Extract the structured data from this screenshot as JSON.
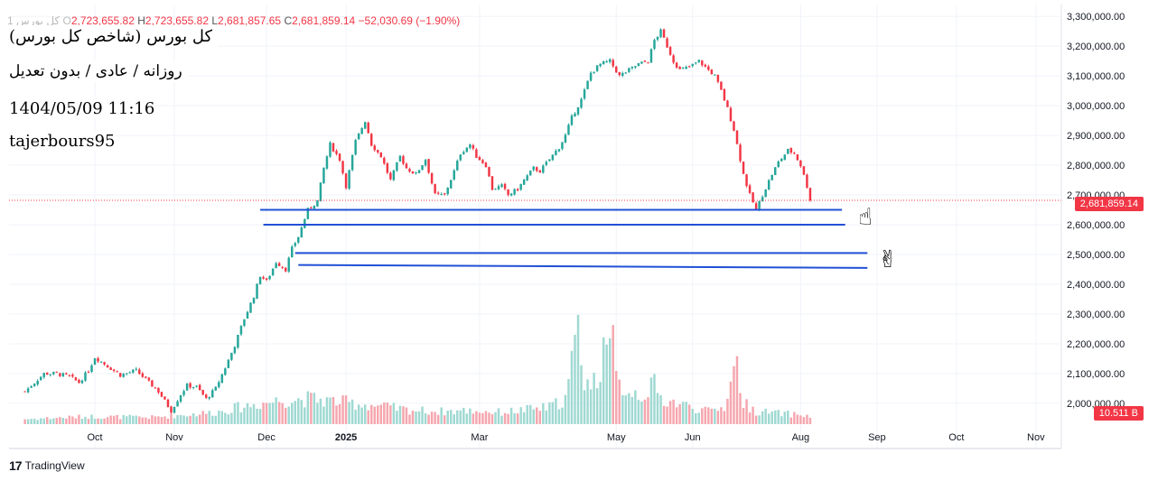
{
  "header": {
    "symbol": "کل بورس 1",
    "o_label": "O",
    "o_value": "2,723,655.82",
    "h_label": "H",
    "h_value": "2,723,655.82",
    "l_label": "L",
    "l_value": "2,681,857.65",
    "c_label": "C",
    "c_value": "2,681,859.14",
    "change": "−52,030.69 (−1.90%)"
  },
  "overlay": {
    "line1": "کل بورس (شاخص کل بورس)",
    "line2": "روزانه / عادی / بدون تعدیل",
    "line3": "1404/05/09 11:16",
    "line4": "tajerbours95"
  },
  "price_tag": "2,681,859.14",
  "volume_tag": "10.511 B",
  "brand": {
    "logo": "17",
    "name": "TradingView"
  },
  "emojis": {
    "pointer": "☝",
    "victory": "✌"
  },
  "colors": {
    "up": "#26a69a",
    "down": "#f23645",
    "up_vol": "#9fd9d2",
    "down_vol": "#f5a6ae",
    "hline": "#2150d6",
    "grid": "#f0f3fa"
  },
  "chart_data": {
    "type": "candlestick",
    "y_ticks": [
      "3,300,000.00",
      "3,200,000.00",
      "3,100,000.00",
      "3,000,000.00",
      "2,900,000.00",
      "2,800,000.00",
      "2,700,000.00",
      "2,600,000.00",
      "2,500,000.00",
      "2,400,000.00",
      "2,300,000.00",
      "2,200,000.00",
      "2,100,000.00",
      "2,000,000.00"
    ],
    "y_tick_values": [
      3300000,
      3200000,
      3100000,
      3000000,
      2900000,
      2800000,
      2700000,
      2600000,
      2500000,
      2400000,
      2300000,
      2200000,
      2100000,
      2000000
    ],
    "ylim": [
      1930000,
      3340000
    ],
    "x_ticks": [
      "Oct",
      "Nov",
      "Dec",
      "2025",
      "Mar",
      "May",
      "Jun",
      "Aug",
      "Sep",
      "Oct",
      "Nov"
    ],
    "x_tick_bars": [
      22,
      47,
      76,
      101,
      143,
      186,
      210,
      244,
      268,
      293,
      318
    ],
    "x_range": [
      -5,
      326
    ],
    "close_path": [
      [
        0,
        2040000
      ],
      [
        6,
        2100000
      ],
      [
        10,
        2100000
      ],
      [
        14,
        2090000
      ],
      [
        17,
        2070000
      ],
      [
        20,
        2110000
      ],
      [
        22,
        2155000
      ],
      [
        26,
        2125000
      ],
      [
        30,
        2095000
      ],
      [
        35,
        2110000
      ],
      [
        38,
        2080000
      ],
      [
        42,
        2040000
      ],
      [
        46,
        1975000
      ],
      [
        49,
        2030000
      ],
      [
        51,
        2060000
      ],
      [
        54,
        2055000
      ],
      [
        57,
        2015000
      ],
      [
        60,
        2050000
      ],
      [
        63,
        2120000
      ],
      [
        66,
        2195000
      ],
      [
        69,
        2285000
      ],
      [
        72,
        2360000
      ],
      [
        74,
        2430000
      ],
      [
        76,
        2410000
      ],
      [
        79,
        2475000
      ],
      [
        82,
        2450000
      ],
      [
        84,
        2520000
      ],
      [
        86,
        2560000
      ],
      [
        89,
        2650000
      ],
      [
        92,
        2680000
      ],
      [
        94,
        2790000
      ],
      [
        96,
        2870000
      ],
      [
        99,
        2820000
      ],
      [
        101,
        2730000
      ],
      [
        104,
        2880000
      ],
      [
        107,
        2950000
      ],
      [
        109,
        2870000
      ],
      [
        112,
        2830000
      ],
      [
        115,
        2750000
      ],
      [
        118,
        2830000
      ],
      [
        120,
        2790000
      ],
      [
        123,
        2770000
      ],
      [
        126,
        2820000
      ],
      [
        129,
        2700000
      ],
      [
        132,
        2700000
      ],
      [
        135,
        2780000
      ],
      [
        137,
        2840000
      ],
      [
        140,
        2870000
      ],
      [
        142,
        2830000
      ],
      [
        145,
        2800000
      ],
      [
        147,
        2720000
      ],
      [
        150,
        2730000
      ],
      [
        152,
        2700000
      ],
      [
        155,
        2720000
      ],
      [
        157,
        2750000
      ],
      [
        160,
        2790000
      ],
      [
        162,
        2780000
      ],
      [
        165,
        2820000
      ],
      [
        168,
        2860000
      ],
      [
        170,
        2900000
      ],
      [
        172,
        2960000
      ],
      [
        175,
        3020000
      ],
      [
        178,
        3110000
      ],
      [
        181,
        3140000
      ],
      [
        184,
        3150000
      ],
      [
        187,
        3100000
      ],
      [
        190,
        3120000
      ],
      [
        193,
        3140000
      ],
      [
        196,
        3150000
      ],
      [
        198,
        3220000
      ],
      [
        200,
        3250000
      ],
      [
        202,
        3200000
      ],
      [
        204,
        3150000
      ],
      [
        206,
        3120000
      ],
      [
        209,
        3130000
      ],
      [
        212,
        3150000
      ],
      [
        215,
        3120000
      ],
      [
        217,
        3100000
      ],
      [
        219,
        3050000
      ],
      [
        221,
        2990000
      ],
      [
        223,
        2920000
      ],
      [
        224,
        2870000
      ],
      [
        226,
        2770000
      ],
      [
        228,
        2700000
      ],
      [
        230,
        2650000
      ],
      [
        232,
        2700000
      ],
      [
        235,
        2770000
      ],
      [
        237,
        2810000
      ],
      [
        240,
        2850000
      ],
      [
        242,
        2840000
      ],
      [
        244,
        2800000
      ],
      [
        246,
        2730000
      ],
      [
        247,
        2682000
      ]
    ],
    "volume_path": [
      [
        0,
        6
      ],
      [
        20,
        9
      ],
      [
        40,
        8
      ],
      [
        60,
        14
      ],
      [
        70,
        22
      ],
      [
        80,
        28
      ],
      [
        90,
        30
      ],
      [
        100,
        26
      ],
      [
        110,
        22
      ],
      [
        120,
        17
      ],
      [
        130,
        15
      ],
      [
        140,
        16
      ],
      [
        150,
        14
      ],
      [
        160,
        18
      ],
      [
        165,
        20
      ],
      [
        170,
        30
      ],
      [
        172,
        70
      ],
      [
        174,
        110
      ],
      [
        176,
        55
      ],
      [
        178,
        45
      ],
      [
        181,
        60
      ],
      [
        183,
        90
      ],
      [
        186,
        50
      ],
      [
        190,
        40
      ],
      [
        194,
        35
      ],
      [
        198,
        45
      ],
      [
        200,
        30
      ],
      [
        205,
        25
      ],
      [
        210,
        20
      ],
      [
        215,
        15
      ],
      [
        220,
        20
      ],
      [
        222,
        55
      ],
      [
        224,
        70
      ],
      [
        226,
        25
      ],
      [
        230,
        15
      ],
      [
        240,
        12
      ],
      [
        247,
        10
      ]
    ],
    "volume_max": 110,
    "volume_spikes": [
      [
        182,
        92
      ],
      [
        185,
        105
      ]
    ],
    "horizontal_levels": [
      {
        "v1": 2650000,
        "v2": 2650000,
        "bar1": 74,
        "bar2": 257
      },
      {
        "v1": 2600000,
        "v2": 2600000,
        "bar1": 75,
        "bar2": 258
      },
      {
        "v1": 2505000,
        "v2": 2505000,
        "bar1": 85,
        "bar2": 265
      },
      {
        "v1": 2465000,
        "v2": 2455000,
        "bar1": 86,
        "bar2": 265
      }
    ],
    "last_price": 2681859.14
  }
}
